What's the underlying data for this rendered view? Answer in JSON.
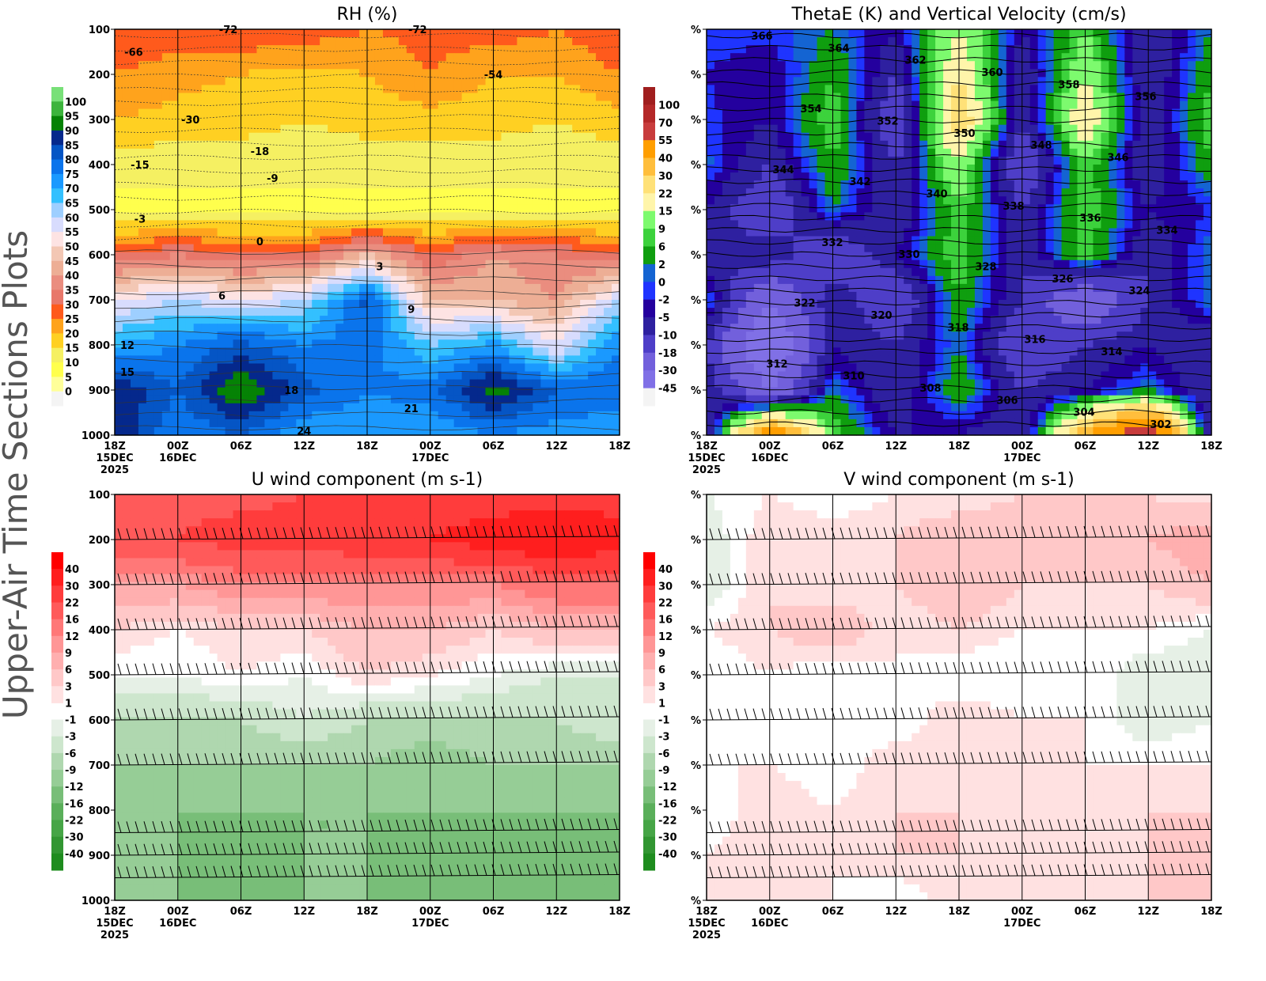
{
  "side_title": "Upper-Air Time Sections Plots",
  "chart_data": [
    {
      "type": "heatmap",
      "title": "RH (%)",
      "y_ticks": [
        "100",
        "200",
        "300",
        "400",
        "500",
        "600",
        "700",
        "800",
        "900",
        "1000"
      ],
      "x_ticks": [
        "18Z",
        "00Z",
        "06Z",
        "12Z",
        "18Z",
        "00Z",
        "06Z",
        "12Z",
        "18Z"
      ],
      "x_sub": {
        "0": "15DEC",
        "1": "16DEC",
        "5": "17DEC"
      },
      "x_year": "2025",
      "levels": [
        "0",
        "5",
        "10",
        "15",
        "20",
        "25",
        "30",
        "35",
        "40",
        "45",
        "50",
        "55",
        "60",
        "65",
        "70",
        "75",
        "80",
        "85",
        "90",
        "95",
        "100"
      ],
      "level_values": [
        0,
        5,
        10,
        15,
        20,
        25,
        30,
        35,
        40,
        45,
        50,
        55,
        60,
        65,
        70,
        75,
        80,
        85,
        90,
        95,
        100
      ],
      "colors": [
        "#f4f4f4",
        "#ffff99",
        "#ffff4d",
        "#f5f062",
        "#ffd022",
        "#ffa31c",
        "#ff5a1c",
        "#e8776a",
        "#ea8d7f",
        "#edae95",
        "#f3c7b4",
        "#fde3e3",
        "#d8dcfd",
        "#9ecfff",
        "#33c0ff",
        "#1a99ff",
        "#0a74ec",
        "#0555c5",
        "#05288c",
        "#058205",
        "#3cb43c",
        "#78e078"
      ],
      "grid": [
        [
          30,
          28,
          30,
          28,
          25,
          27,
          28,
          25,
          30
        ],
        [
          25,
          22,
          20,
          18,
          20,
          25,
          20,
          20,
          25
        ],
        [
          20,
          18,
          17,
          15,
          17,
          18,
          17,
          15,
          18
        ],
        [
          12,
          12,
          12,
          12,
          12,
          12,
          12,
          12,
          12
        ],
        [
          8,
          8,
          8,
          8,
          8,
          8,
          8,
          8,
          8
        ],
        [
          30,
          35,
          30,
          30,
          45,
          30,
          40,
          35,
          30
        ],
        [
          55,
          60,
          55,
          60,
          82,
          45,
          45,
          40,
          60
        ],
        [
          70,
          75,
          82,
          75,
          78,
          65,
          72,
          55,
          75
        ],
        [
          90,
          80,
          96,
          82,
          75,
          78,
          93,
          80,
          80
        ],
        [
          90,
          75,
          80,
          70,
          72,
          70,
          75,
          72,
          70
        ]
      ],
      "contour_labels": [
        {
          "t": 0.3,
          "p": 150,
          "v": "-66"
        },
        {
          "t": 1.8,
          "p": 100,
          "v": "-72"
        },
        {
          "t": 4.8,
          "p": 100,
          "v": "-72"
        },
        {
          "t": 6,
          "p": 200,
          "v": "-54"
        },
        {
          "t": 1.2,
          "p": 300,
          "v": "-30"
        },
        {
          "t": 2.3,
          "p": 370,
          "v": "-18"
        },
        {
          "t": 0.4,
          "p": 400,
          "v": "-15"
        },
        {
          "t": 2.5,
          "p": 430,
          "v": "-9"
        },
        {
          "t": 0.4,
          "p": 520,
          "v": "-3"
        },
        {
          "t": 2.3,
          "p": 570,
          "v": "0"
        },
        {
          "t": 4.2,
          "p": 625,
          "v": "3"
        },
        {
          "t": 1.7,
          "p": 690,
          "v": "6"
        },
        {
          "t": 4.7,
          "p": 720,
          "v": "9"
        },
        {
          "t": 0.2,
          "p": 800,
          "v": "12"
        },
        {
          "t": 0.2,
          "p": 860,
          "v": "15"
        },
        {
          "t": 2.8,
          "p": 900,
          "v": "18"
        },
        {
          "t": 4.7,
          "p": 940,
          "v": "21"
        },
        {
          "t": 3,
          "p": 990,
          "v": "24"
        }
      ]
    },
    {
      "type": "heatmap",
      "title": "ThetaE (K) and Vertical Velocity (cm/s)",
      "y_tick_label": "%",
      "levels": [
        "-45",
        "-30",
        "-18",
        "-10",
        "-5",
        "-2",
        "0",
        "2",
        "6",
        "9",
        "15",
        "22",
        "30",
        "40",
        "55",
        "70",
        "100"
      ],
      "level_values": [
        -45,
        -30,
        -18,
        -10,
        -5,
        -2,
        0,
        2,
        6,
        9,
        15,
        22,
        30,
        40,
        55,
        70,
        100
      ],
      "colors": [
        "#f4f4f4",
        "#8070e6",
        "#7260dc",
        "#4e3ec8",
        "#2e20a0",
        "#24009e",
        "#1f34ff",
        "#1464d2",
        "#0f9e0f",
        "#3cd23c",
        "#7dfa6e",
        "#fff5aa",
        "#ffe178",
        "#ffbe3c",
        "#ff9e00",
        "#c83c3c",
        "#b42828",
        "#a01e1e"
      ],
      "grid": [
        [
          0,
          -1,
          2,
          -5,
          15,
          -5,
          9,
          -10,
          2
        ],
        [
          -2,
          -5,
          6,
          -10,
          22,
          -10,
          15,
          -10,
          6
        ],
        [
          -1,
          -5,
          9,
          -18,
          30,
          -10,
          22,
          -10,
          9
        ],
        [
          1,
          -10,
          6,
          -10,
          15,
          -18,
          9,
          -10,
          6
        ],
        [
          -5,
          -18,
          2,
          -10,
          9,
          -10,
          9,
          -5,
          -2
        ],
        [
          -10,
          -5,
          -18,
          -5,
          9,
          -10,
          9,
          -10,
          2
        ],
        [
          2,
          -30,
          -5,
          -18,
          6,
          -10,
          -30,
          -10,
          2
        ],
        [
          -10,
          -45,
          -5,
          -10,
          2,
          -18,
          -10,
          -5,
          -10
        ],
        [
          -5,
          -30,
          2,
          -10,
          6,
          -10,
          -5,
          2,
          -10
        ],
        [
          -10,
          55,
          9,
          -5,
          -5,
          -10,
          40,
          70,
          -10
        ]
      ],
      "theta_contours": [
        "366",
        "364",
        "362",
        "360",
        "358",
        "356",
        "354",
        "352",
        "350",
        "348",
        "346",
        "344",
        "342",
        "340",
        "338",
        "336",
        "334",
        "332",
        "330",
        "328",
        "326",
        "324",
        "322",
        "320",
        "318",
        "316",
        "314",
        "312",
        "310",
        "308",
        "306",
        "304",
        "302"
      ]
    },
    {
      "type": "heatmap",
      "title": "U wind component (m s-1)",
      "levels": [
        "-40",
        "-30",
        "-22",
        "-16",
        "-12",
        "-9",
        "-6",
        "-3",
        "-1",
        "1",
        "3",
        "6",
        "9",
        "12",
        "16",
        "22",
        "30",
        "40"
      ],
      "level_values": [
        -40,
        -30,
        -22,
        -16,
        -12,
        -9,
        -6,
        -3,
        -1,
        1,
        3,
        6,
        9,
        12,
        16,
        22,
        30,
        40
      ],
      "colors": [
        "#1e8c1e",
        "#329632",
        "#46a546",
        "#5aaf5a",
        "#78be78",
        "#96cd96",
        "#afd7af",
        "#cde6cd",
        "#e6f0e6",
        "#ffffff",
        "#ffe1e1",
        "#ffc8c8",
        "#ffafaf",
        "#ff9696",
        "#ff7878",
        "#ff5a5a",
        "#ff3c3c",
        "#ff1e1e",
        "#ff0000"
      ],
      "grid": [
        [
          16,
          20,
          20,
          22,
          25,
          25,
          25,
          25,
          25
        ],
        [
          20,
          22,
          25,
          25,
          28,
          30,
          35,
          40,
          35
        ],
        [
          9,
          9,
          12,
          12,
          12,
          12,
          12,
          16,
          16
        ],
        [
          3,
          1,
          3,
          3,
          6,
          6,
          3,
          6,
          6
        ],
        [
          -1,
          -1,
          1,
          -1,
          3,
          1,
          -1,
          -3,
          -3
        ],
        [
          -6,
          -6,
          -6,
          -3,
          -6,
          -6,
          -6,
          -6,
          -3
        ],
        [
          -9,
          -9,
          -9,
          -9,
          -9,
          -12,
          -9,
          -9,
          -9
        ],
        [
          -9,
          -12,
          -12,
          -12,
          -12,
          -12,
          -12,
          -12,
          -12
        ],
        [
          -12,
          -12,
          -16,
          -12,
          -12,
          -16,
          -12,
          -16,
          -12
        ],
        [
          -12,
          -12,
          -12,
          -12,
          -12,
          -12,
          -12,
          -12,
          -12
        ]
      ],
      "barb_levels": [
        200,
        300,
        400,
        500,
        600,
        700,
        850,
        900,
        950
      ]
    },
    {
      "type": "heatmap",
      "title": "V wind component (m s-1)",
      "y_tick_label": "%",
      "levels": [
        "-40",
        "-30",
        "-22",
        "-16",
        "-12",
        "-9",
        "-6",
        "-3",
        "-1",
        "1",
        "3",
        "6",
        "9",
        "12",
        "16",
        "22",
        "30",
        "40"
      ],
      "level_values": [
        -40,
        -30,
        -22,
        -16,
        -12,
        -9,
        -6,
        -3,
        -1,
        1,
        3,
        6,
        9,
        12,
        16,
        22,
        30,
        40
      ],
      "grid": [
        [
          -1,
          1,
          -1,
          1,
          1,
          3,
          3,
          3,
          1
        ],
        [
          -3,
          3,
          3,
          3,
          6,
          6,
          6,
          6,
          9
        ],
        [
          -3,
          3,
          1,
          3,
          6,
          3,
          3,
          3,
          6
        ],
        [
          1,
          3,
          6,
          1,
          3,
          1,
          1,
          1,
          -1
        ],
        [
          -1,
          1,
          -1,
          1,
          -1,
          -1,
          1,
          -3,
          -3
        ],
        [
          -1,
          1,
          1,
          -1,
          3,
          1,
          1,
          -3,
          -1
        ],
        [
          1,
          1,
          -1,
          3,
          1,
          1,
          1,
          1,
          1
        ],
        [
          -1,
          3,
          1,
          3,
          3,
          1,
          1,
          3,
          3
        ],
        [
          1,
          3,
          1,
          3,
          3,
          1,
          1,
          3,
          6
        ],
        [
          1,
          1,
          1,
          -1,
          3,
          1,
          1,
          3,
          3
        ]
      ],
      "barb_levels": [
        200,
        300,
        400,
        500,
        600,
        700,
        850,
        900,
        950
      ]
    }
  ]
}
